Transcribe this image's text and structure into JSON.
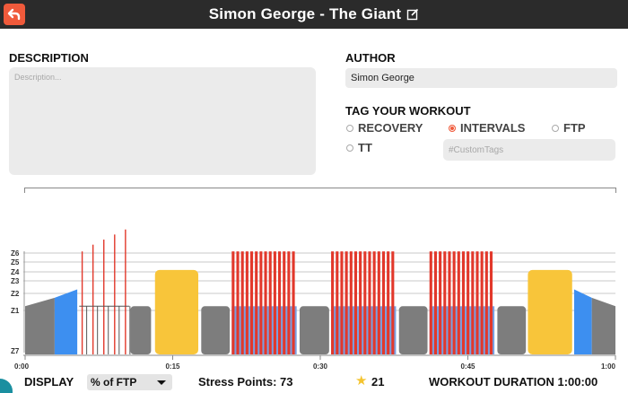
{
  "header": {
    "title": "Simon George - The Giant"
  },
  "description": {
    "label": "DESCRIPTION",
    "placeholder": "Description...",
    "value": ""
  },
  "author": {
    "label": "AUTHOR",
    "value": "Simon George"
  },
  "tags": {
    "label": "TAG YOUR WORKOUT",
    "options": [
      {
        "label": "RECOVERY",
        "selected": false
      },
      {
        "label": "INTERVALS",
        "selected": true
      },
      {
        "label": "FTP",
        "selected": false
      },
      {
        "label": "TT",
        "selected": false
      }
    ],
    "custom_placeholder": "#CustomTags"
  },
  "colors": {
    "header_bg": "#2b2b2b",
    "accent": "#f05a3b",
    "red": "#e2382b",
    "yellow": "#f8c53a",
    "blue": "#3d8ff0",
    "gray": "#7d7d7d"
  },
  "chart_data": {
    "type": "bar",
    "zone_labels": [
      "Z6",
      "Z5",
      "Z4",
      "Z3",
      "Z2",
      "Z1",
      "Z7"
    ],
    "x_tick_labels": [
      "0:00",
      "0:15",
      "0:30",
      "0:45",
      "1:00"
    ],
    "x_range_minutes": [
      0,
      60
    ],
    "blocks": [
      {
        "kind": "ramp-gray",
        "start": 0.0,
        "end": 3.0,
        "from": 55,
        "to": 65
      },
      {
        "kind": "ramp-blue",
        "start": 3.0,
        "end": 5.3,
        "from": 65,
        "to": 75
      },
      {
        "kind": "spike",
        "at": 5.8,
        "power": 120
      },
      {
        "kind": "spike",
        "at": 6.9,
        "power": 128
      },
      {
        "kind": "spike",
        "at": 8.0,
        "power": 134
      },
      {
        "kind": "spike",
        "at": 9.1,
        "power": 140
      },
      {
        "kind": "spike",
        "at": 10.2,
        "power": 146
      },
      {
        "kind": "gray",
        "start": 10.7,
        "end": 12.8,
        "power": 55
      },
      {
        "kind": "yellow",
        "start": 13.2,
        "end": 17.6,
        "power": 98
      },
      {
        "kind": "gray",
        "start": 17.9,
        "end": 20.8,
        "power": 55
      },
      {
        "kind": "intervals",
        "start": 21.0,
        "end": 27.6,
        "power": 120,
        "count": 14
      },
      {
        "kind": "gray",
        "start": 27.9,
        "end": 30.9,
        "power": 55
      },
      {
        "kind": "intervals",
        "start": 31.1,
        "end": 37.7,
        "power": 120,
        "count": 14
      },
      {
        "kind": "gray",
        "start": 38.0,
        "end": 40.9,
        "power": 55
      },
      {
        "kind": "intervals",
        "start": 41.1,
        "end": 47.7,
        "power": 120,
        "count": 14
      },
      {
        "kind": "gray",
        "start": 48.0,
        "end": 50.9,
        "power": 55
      },
      {
        "kind": "yellow",
        "start": 51.1,
        "end": 55.6,
        "power": 98
      },
      {
        "kind": "ramp-blue",
        "start": 55.8,
        "end": 57.6,
        "from": 75,
        "to": 65
      },
      {
        "kind": "ramp-gray",
        "start": 57.6,
        "end": 60.0,
        "from": 65,
        "to": 55
      }
    ]
  },
  "footer": {
    "display_label": "DISPLAY",
    "display_value": "% of FTP",
    "stress_points": "Stress Points: 73",
    "stars": "21",
    "duration": "WORKOUT DURATION 1:00:00"
  }
}
